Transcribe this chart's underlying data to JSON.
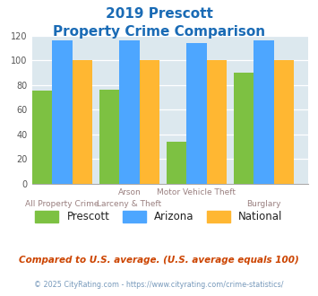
{
  "title_line1": "2019 Prescott",
  "title_line2": "Property Crime Comparison",
  "cat_labels_top": [
    "",
    "Arson",
    "Motor Vehicle Theft",
    ""
  ],
  "cat_labels_bottom": [
    "All Property Crime",
    "Larceny & Theft",
    "",
    "Burglary"
  ],
  "prescott": [
    75,
    76,
    34,
    90
  ],
  "arizona": [
    116,
    116,
    114,
    116
  ],
  "national": [
    100,
    100,
    100,
    100
  ],
  "colors": {
    "prescott": "#7dc142",
    "arizona": "#4da6ff",
    "national": "#ffb732"
  },
  "ylim": [
    0,
    120
  ],
  "yticks": [
    0,
    20,
    40,
    60,
    80,
    100,
    120
  ],
  "plot_bg": "#dce8ee",
  "title_color": "#1a6bb5",
  "xlabel_color_top": "#9a8080",
  "xlabel_color_bottom": "#9a8080",
  "legend_labels": [
    "Prescott",
    "Arizona",
    "National"
  ],
  "footnote1": "Compared to U.S. average. (U.S. average equals 100)",
  "footnote2": "© 2025 CityRating.com - https://www.cityrating.com/crime-statistics/",
  "footnote1_color": "#cc4400",
  "footnote2_color": "#7799bb"
}
